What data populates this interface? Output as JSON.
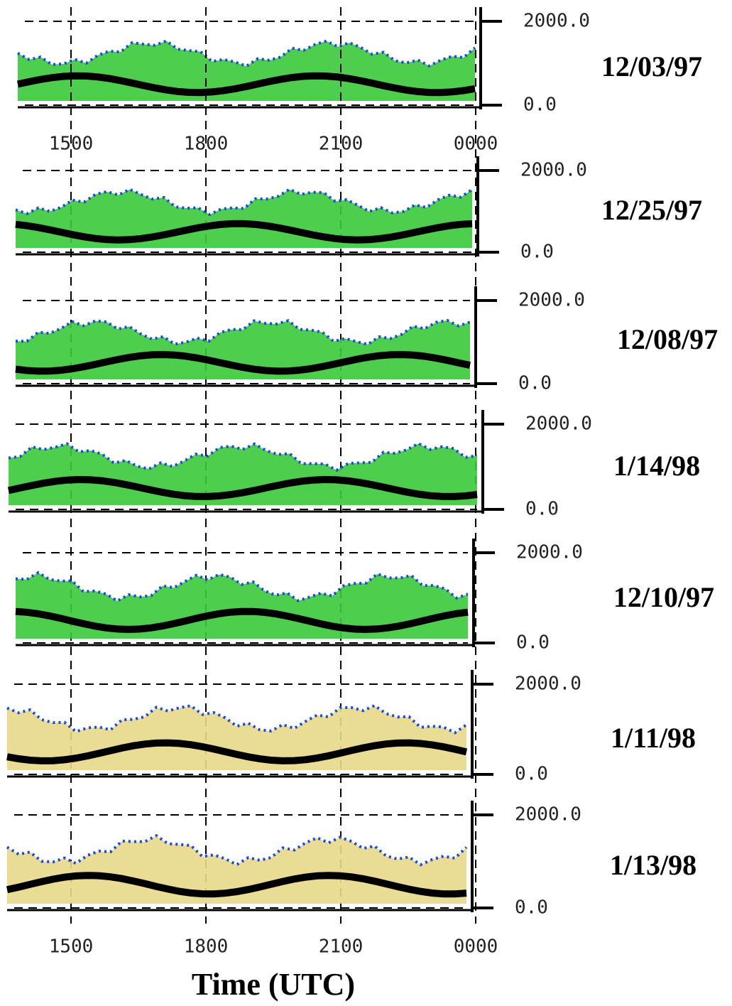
{
  "chart_data": [
    {
      "type": "lidar",
      "title": "12/03/97",
      "ylim": [
        0,
        2000
      ],
      "yticks": [
        {
          "value": 0,
          "label": "0.0"
        },
        {
          "value": 2000,
          "label": "2000.0"
        }
      ],
      "xlim": [
        13.8,
        24.1
      ],
      "xticks": [
        {
          "value": 15,
          "label": "1500"
        },
        {
          "value": 18,
          "label": "1800"
        },
        {
          "value": 21,
          "label": "2100"
        },
        {
          "value": 24,
          "label": "0000"
        }
      ]
    },
    {
      "type": "lidar",
      "title": "12/25/97",
      "ylim": [
        0,
        2000
      ],
      "yticks": [
        {
          "value": 0,
          "label": "0.0"
        },
        {
          "value": 2000,
          "label": "2000.0"
        }
      ],
      "xlim": [
        13.8,
        24.1
      ]
    },
    {
      "type": "lidar",
      "title": "12/08/97",
      "ylim": [
        0,
        2000
      ],
      "yticks": [
        {
          "value": 0,
          "label": "0.0"
        },
        {
          "value": 2000,
          "label": "2000.0"
        }
      ],
      "xlim": [
        13.8,
        24.1
      ]
    },
    {
      "type": "lidar",
      "title": "1/14/98",
      "ylim": [
        0,
        2000
      ],
      "yticks": [
        {
          "value": 0,
          "label": "0.0"
        },
        {
          "value": 2000,
          "label": "2000.0"
        }
      ],
      "xlim": [
        13.8,
        24.1
      ]
    },
    {
      "type": "lidar",
      "title": "12/10/97",
      "ylim": [
        0,
        2000
      ],
      "yticks": [
        {
          "value": 0,
          "label": "0.0"
        },
        {
          "value": 2000,
          "label": "2000.0"
        }
      ],
      "xlim": [
        13.8,
        24.1
      ]
    },
    {
      "type": "lidar",
      "title": "1/11/98",
      "ylim": [
        0,
        2000
      ],
      "yticks": [
        {
          "value": 0,
          "label": "0.0"
        },
        {
          "value": 2000,
          "label": "2000.0"
        }
      ],
      "xlim": [
        13.8,
        24.1
      ]
    },
    {
      "type": "lidar",
      "title": "1/13/98",
      "ylim": [
        0,
        2000
      ],
      "yticks": [
        {
          "value": 0,
          "label": "0.0"
        },
        {
          "value": 2000,
          "label": "2000.0"
        }
      ],
      "xlim": [
        13.8,
        24.1
      ],
      "xticks": [
        {
          "value": 15,
          "label": "1500"
        },
        {
          "value": 18,
          "label": "1800"
        },
        {
          "value": 21,
          "label": "2100"
        },
        {
          "value": 24,
          "label": "0000"
        }
      ],
      "xlabel": "Time (UTC)"
    }
  ]
}
